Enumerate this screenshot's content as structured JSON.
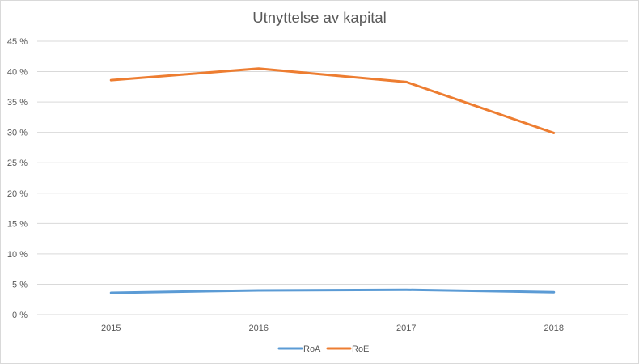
{
  "chart_data": {
    "type": "line",
    "title": "Utnyttelse av kapital",
    "categories": [
      "2015",
      "2016",
      "2017",
      "2018"
    ],
    "series": [
      {
        "name": "RoA",
        "color": "#5b9bd5",
        "values": [
          3.6,
          4.0,
          4.1,
          3.7
        ]
      },
      {
        "name": "RoE",
        "color": "#ed7d31",
        "values": [
          38.6,
          40.5,
          38.3,
          29.9
        ]
      }
    ],
    "ylim": [
      0,
      45
    ],
    "yticks": [
      "0 %",
      "5 %",
      "10 %",
      "15 %",
      "20 %",
      "25 %",
      "30 %",
      "35 %",
      "40 %",
      "45 %"
    ],
    "xlabel": "",
    "ylabel": "",
    "grid": true,
    "legend": "bottom-center"
  }
}
